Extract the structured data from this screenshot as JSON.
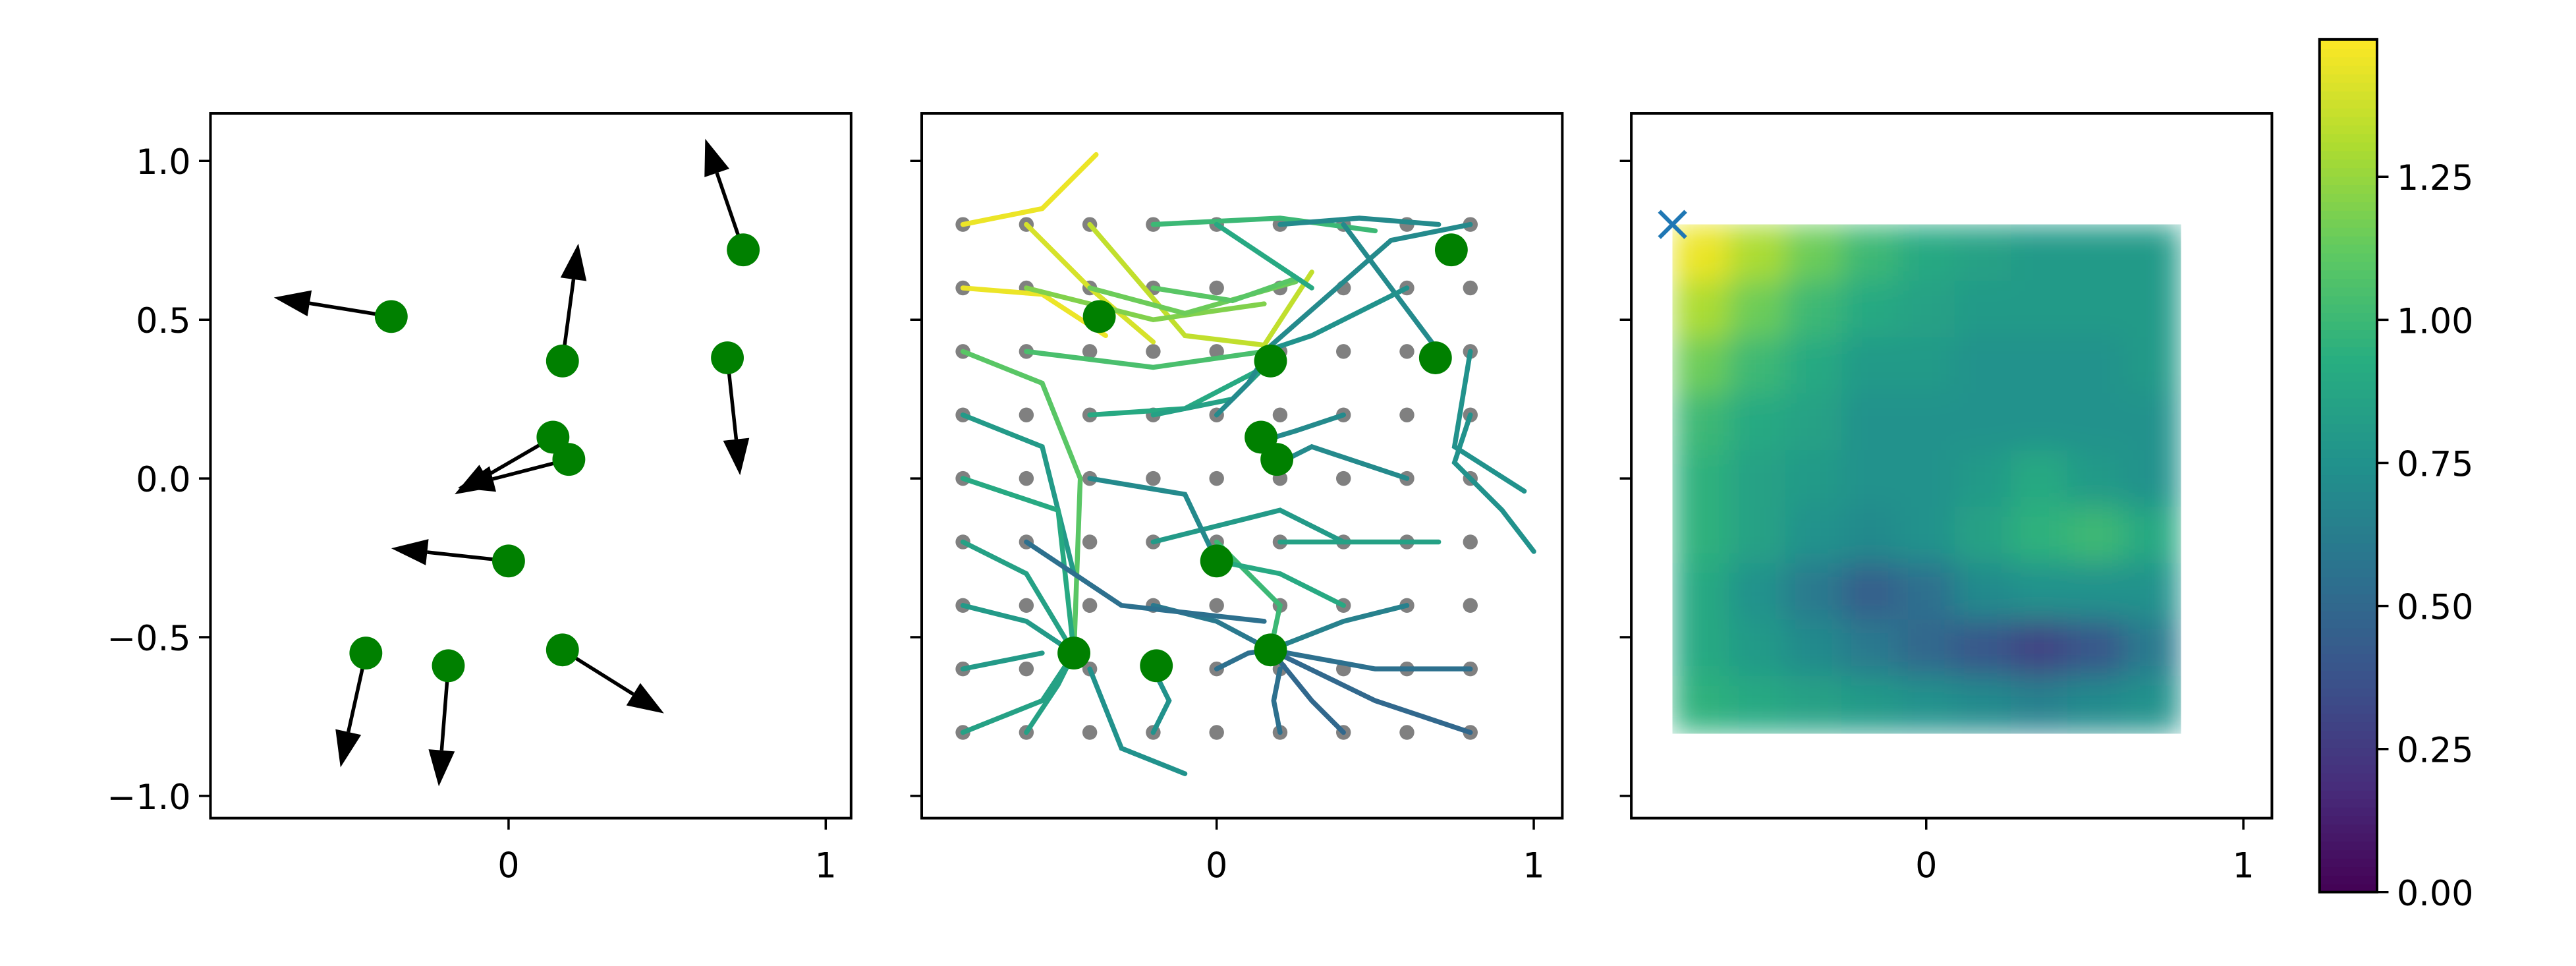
{
  "chart_data": [
    {
      "type": "quiver",
      "x": [
        -0.37,
        0.17,
        0.74,
        0.69,
        0.14,
        0.19,
        0.0,
        -0.45,
        -0.19,
        0.17
      ],
      "y": [
        0.51,
        0.37,
        0.72,
        0.38,
        0.13,
        0.06,
        -0.26,
        -0.55,
        -0.59,
        -0.54
      ],
      "u": [
        -0.37,
        0.05,
        -0.12,
        0.04,
        -0.31,
        -0.35,
        -0.37,
        -0.08,
        -0.03,
        0.32
      ],
      "v": [
        0.06,
        0.37,
        0.35,
        -0.37,
        -0.18,
        -0.09,
        0.04,
        -0.36,
        -0.38,
        -0.2
      ],
      "color": "#008000",
      "arrow_color": "#000000",
      "xlim": [
        -0.94,
        1.08
      ],
      "ylim": [
        -1.07,
        1.15
      ],
      "xticks": [
        0,
        1
      ],
      "yticks": [
        {
          "value": -1.0,
          "label": "−1.0"
        },
        {
          "value": -0.5,
          "label": "−0.5"
        },
        {
          "value": 0.0,
          "label": "0.0"
        },
        {
          "value": 0.5,
          "label": "0.5"
        },
        {
          "value": 1.0,
          "label": "1.0"
        }
      ]
    },
    {
      "type": "trajectories",
      "grid_x": [
        -0.8,
        -0.6,
        -0.4,
        -0.2,
        0.0,
        0.2,
        0.4,
        0.6,
        0.8
      ],
      "grid_y": [
        -0.8,
        -0.6,
        -0.4,
        -0.2,
        0.0,
        0.2,
        0.4,
        0.6,
        0.8
      ],
      "grid_color": "#808080",
      "trajectories": [
        {
          "x": [
            -0.8,
            -0.55,
            -0.38
          ],
          "y": [
            0.8,
            0.85,
            1.02
          ],
          "value": 1.45
        },
        {
          "x": [
            -0.8,
            -0.55,
            -0.35
          ],
          "y": [
            0.6,
            0.58,
            0.45
          ],
          "value": 1.45
        },
        {
          "x": [
            -0.6,
            -0.4,
            -0.2
          ],
          "y": [
            0.8,
            0.6,
            0.43
          ],
          "value": 1.4
        },
        {
          "x": [
            -0.4,
            -0.1,
            0.15,
            0.3
          ],
          "y": [
            0.8,
            0.45,
            0.42,
            0.65
          ],
          "value": 1.35
        },
        {
          "x": [
            -0.6,
            -0.2,
            0.15
          ],
          "y": [
            0.6,
            0.5,
            0.55
          ],
          "value": 1.2
        },
        {
          "x": [
            -0.4,
            -0.1,
            0.25
          ],
          "y": [
            0.6,
            0.52,
            0.62
          ],
          "value": 1.15
        },
        {
          "x": [
            -0.2,
            0.05,
            0.25
          ],
          "y": [
            0.6,
            0.56,
            0.63
          ],
          "value": 1.1
        },
        {
          "x": [
            -0.8,
            -0.55,
            -0.43,
            -0.45
          ],
          "y": [
            0.4,
            0.3,
            0.0,
            -0.55
          ],
          "value": 1.1
        },
        {
          "x": [
            -0.6,
            -0.2,
            0.15
          ],
          "y": [
            0.4,
            0.35,
            0.4
          ],
          "value": 1.05
        },
        {
          "x": [
            -0.2,
            0.2,
            0.5
          ],
          "y": [
            0.8,
            0.82,
            0.78
          ],
          "value": 1.0
        },
        {
          "x": [
            0.0,
            0.15,
            0.3
          ],
          "y": [
            0.8,
            0.7,
            0.6
          ],
          "value": 0.9
        },
        {
          "x": [
            -0.8,
            -0.55,
            -0.45
          ],
          "y": [
            0.2,
            0.1,
            -0.3
          ],
          "value": 0.8
        },
        {
          "x": [
            -0.4,
            -0.1,
            0.15
          ],
          "y": [
            0.2,
            0.22,
            0.35
          ],
          "value": 0.9
        },
        {
          "x": [
            -0.2,
            0.05,
            0.2
          ],
          "y": [
            0.2,
            0.25,
            0.4
          ],
          "value": 0.85
        },
        {
          "x": [
            0.0,
            0.1,
            0.15
          ],
          "y": [
            0.2,
            0.3,
            0.38
          ],
          "value": 0.7
        },
        {
          "x": [
            0.2,
            0.45,
            0.7
          ],
          "y": [
            0.8,
            0.82,
            0.8
          ],
          "value": 0.7
        },
        {
          "x": [
            0.4,
            0.55,
            0.7
          ],
          "y": [
            0.8,
            0.6,
            0.4
          ],
          "value": 0.7
        },
        {
          "x": [
            0.8,
            0.55,
            0.15
          ],
          "y": [
            0.8,
            0.75,
            0.4
          ],
          "value": 0.7
        },
        {
          "x": [
            0.6,
            0.3,
            0.15
          ],
          "y": [
            0.6,
            0.45,
            0.4
          ],
          "value": 0.75
        },
        {
          "x": [
            0.8,
            0.75,
            0.9,
            1.0
          ],
          "y": [
            0.2,
            0.05,
            -0.1,
            -0.23
          ],
          "value": 0.75
        },
        {
          "x": [
            0.8,
            0.75,
            0.97
          ],
          "y": [
            0.4,
            0.1,
            -0.04
          ],
          "value": 0.75
        },
        {
          "x": [
            0.6,
            0.3,
            0.2
          ],
          "y": [
            0.0,
            0.1,
            0.05
          ],
          "value": 0.7
        },
        {
          "x": [
            0.4,
            0.25,
            0.15
          ],
          "y": [
            0.2,
            0.15,
            0.12
          ],
          "value": 0.7
        },
        {
          "x": [
            -0.8,
            -0.5,
            -0.45
          ],
          "y": [
            0.0,
            -0.1,
            -0.55
          ],
          "value": 0.9
        },
        {
          "x": [
            -0.8,
            -0.6,
            -0.45
          ],
          "y": [
            -0.2,
            -0.3,
            -0.55
          ],
          "value": 0.85
        },
        {
          "x": [
            -0.8,
            -0.6,
            -0.45
          ],
          "y": [
            -0.4,
            -0.45,
            -0.55
          ],
          "value": 0.8
        },
        {
          "x": [
            -0.8,
            -0.55
          ],
          "y": [
            -0.6,
            -0.55
          ],
          "value": 0.8
        },
        {
          "x": [
            -0.8,
            -0.55,
            -0.45
          ],
          "y": [
            -0.8,
            -0.7,
            -0.55
          ],
          "value": 0.85
        },
        {
          "x": [
            -0.6,
            -0.5,
            -0.45
          ],
          "y": [
            -0.8,
            -0.65,
            -0.55
          ],
          "value": 0.85
        },
        {
          "x": [
            -0.2,
            -0.15,
            -0.2
          ],
          "y": [
            -0.8,
            -0.7,
            -0.6
          ],
          "value": 0.75
        },
        {
          "x": [
            -0.4,
            -0.3,
            -0.1
          ],
          "y": [
            -0.6,
            -0.85,
            -0.93
          ],
          "value": 0.75
        },
        {
          "x": [
            -0.2,
            0.0,
            0.17
          ],
          "y": [
            -0.4,
            -0.45,
            -0.54
          ],
          "value": 0.6
        },
        {
          "x": [
            0.0,
            0.1,
            0.17
          ],
          "y": [
            -0.6,
            -0.55,
            -0.54
          ],
          "value": 0.55
        },
        {
          "x": [
            0.2,
            0.18,
            0.2
          ],
          "y": [
            -0.8,
            -0.7,
            -0.6
          ],
          "value": 0.55
        },
        {
          "x": [
            0.4,
            0.3,
            0.17
          ],
          "y": [
            -0.8,
            -0.7,
            -0.54
          ],
          "value": 0.5
        },
        {
          "x": [
            0.8,
            0.5,
            0.17
          ],
          "y": [
            -0.6,
            -0.6,
            -0.54
          ],
          "value": 0.55
        },
        {
          "x": [
            0.8,
            0.5,
            0.17
          ],
          "y": [
            -0.8,
            -0.7,
            -0.54
          ],
          "value": 0.5
        },
        {
          "x": [
            0.6,
            0.4,
            0.17
          ],
          "y": [
            -0.4,
            -0.45,
            -0.54
          ],
          "value": 0.65
        },
        {
          "x": [
            -0.2,
            0.2,
            0.4
          ],
          "y": [
            -0.2,
            -0.1,
            -0.2
          ],
          "value": 0.8
        },
        {
          "x": [
            0.2,
            0.5,
            0.7
          ],
          "y": [
            -0.2,
            -0.2,
            -0.2
          ],
          "value": 0.85
        },
        {
          "x": [
            -0.6,
            -0.3,
            0.15
          ],
          "y": [
            -0.2,
            -0.4,
            -0.45
          ],
          "value": 0.55
        },
        {
          "x": [
            -0.4,
            -0.1,
            0.0
          ],
          "y": [
            0.0,
            -0.05,
            -0.26
          ],
          "value": 0.7
        },
        {
          "x": [
            0.0,
            0.2,
            0.17
          ],
          "y": [
            -0.2,
            -0.4,
            -0.54
          ],
          "value": 1.0
        },
        {
          "x": [
            0.4,
            0.2,
            0.0
          ],
          "y": [
            -0.4,
            -0.3,
            -0.26
          ],
          "value": 0.9
        }
      ],
      "sources_x": [
        -0.37,
        0.17,
        0.74,
        0.69,
        0.14,
        0.19,
        0.0,
        -0.45,
        -0.19,
        0.17
      ],
      "sources_y": [
        0.51,
        0.37,
        0.72,
        0.38,
        0.13,
        0.06,
        -0.26,
        -0.55,
        -0.59,
        -0.54
      ],
      "source_color": "#008000",
      "colormap": "viridis",
      "clim": [
        0,
        1.49
      ],
      "xlim": [
        -0.93,
        1.09
      ],
      "ylim": [
        -1.07,
        1.15
      ],
      "xticks": [
        0,
        1
      ],
      "yticks": [
        -1,
        -0.5,
        0,
        0.5,
        1
      ],
      "ytick_labels": false
    },
    {
      "type": "heatmap",
      "z": [
        [
          1.45,
          1.3,
          1.15,
          1.0,
          0.9,
          0.85,
          0.8,
          0.8,
          0.8
        ],
        [
          1.3,
          1.15,
          1.0,
          0.9,
          0.85,
          0.8,
          0.8,
          0.8,
          0.8
        ],
        [
          1.15,
          1.0,
          0.9,
          0.8,
          0.8,
          0.75,
          0.75,
          0.75,
          0.8
        ],
        [
          1.0,
          0.9,
          0.85,
          0.75,
          0.75,
          0.75,
          0.75,
          0.75,
          0.75
        ],
        [
          0.95,
          0.85,
          0.8,
          0.75,
          0.75,
          0.8,
          0.9,
          0.8,
          0.75
        ],
        [
          0.95,
          0.85,
          0.75,
          0.7,
          0.75,
          0.85,
          0.95,
          1.0,
          0.9
        ],
        [
          0.9,
          0.75,
          0.6,
          0.45,
          0.55,
          0.7,
          0.75,
          0.75,
          0.75
        ],
        [
          0.9,
          0.8,
          0.7,
          0.6,
          0.5,
          0.4,
          0.3,
          0.4,
          0.6
        ],
        [
          0.95,
          0.9,
          0.85,
          0.8,
          0.75,
          0.7,
          0.65,
          0.7,
          0.75
        ]
      ],
      "extent": [
        -0.8,
        0.8,
        -0.8,
        0.8
      ],
      "colormap": "viridis",
      "clim": [
        0,
        1.49
      ],
      "marker": {
        "x": -0.8,
        "y": 0.8,
        "color": "#1f77b4"
      },
      "xlim": [
        -0.93,
        1.09
      ],
      "ylim": [
        -1.07,
        1.15
      ],
      "xticks": [
        0,
        1
      ],
      "yticks": [
        -1,
        -0.5,
        0,
        0.5,
        1
      ],
      "ytick_labels": false,
      "colorbar_ticks": [
        {
          "value": 0,
          "label": "0.00"
        },
        {
          "value": 0.25,
          "label": "0.25"
        },
        {
          "value": 0.5,
          "label": "0.50"
        },
        {
          "value": 0.75,
          "label": "0.75"
        },
        {
          "value": 1.0,
          "label": "1.00"
        },
        {
          "value": 1.25,
          "label": "1.25"
        }
      ]
    }
  ]
}
